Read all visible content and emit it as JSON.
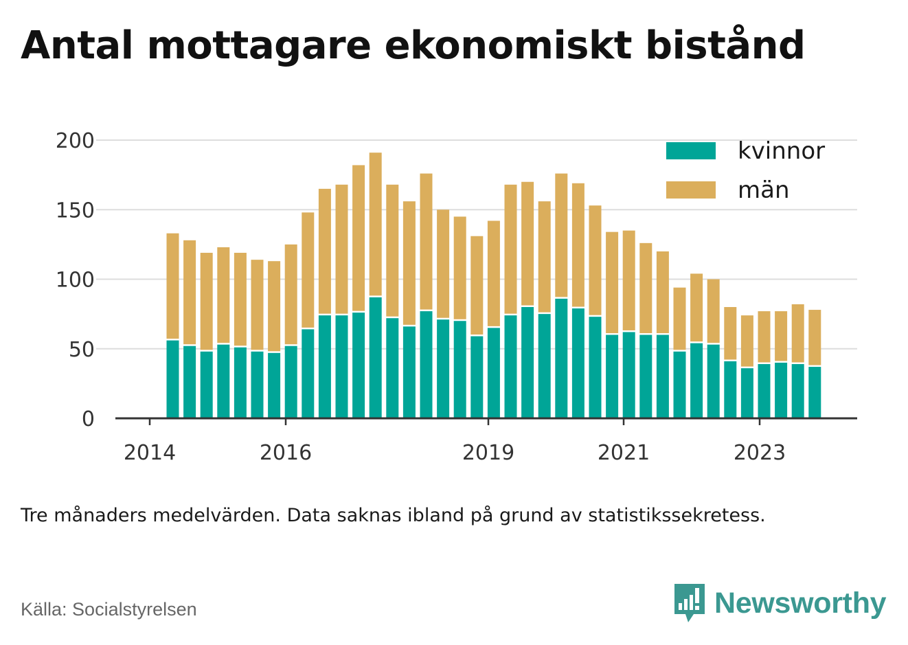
{
  "title": "Antal mottagare ekonomiskt bistånd",
  "note": "Tre månaders medelvärden. Data saknas ibland på grund av statistikssekretess.",
  "source": "Källa: Socialstyrelsen",
  "brand": {
    "name": "Newsworthy",
    "icon": "newsworthy-logo-icon"
  },
  "colors": {
    "kvinnor": "#00a597",
    "man": "#dbae5c",
    "grid": "#dddddd",
    "axis": "#333333"
  },
  "chart_data": {
    "type": "bar",
    "stacked": true,
    "ylim": [
      0,
      200
    ],
    "yticks": [
      "0",
      "50",
      "100",
      "150",
      "200"
    ],
    "xticks": [
      "2014",
      "2016",
      "2019",
      "2021",
      "2023"
    ],
    "grid": true,
    "legend_position": "top-right",
    "series": [
      {
        "name": "kvinnor",
        "values": [
          56,
          52,
          48,
          53,
          51,
          48,
          47,
          52,
          64,
          74,
          74,
          76,
          87,
          72,
          66,
          77,
          71,
          70,
          59,
          65,
          74,
          80,
          75,
          86,
          79,
          73,
          60,
          62,
          60,
          60,
          48,
          54,
          53,
          41,
          36,
          39,
          40,
          39,
          37
        ]
      },
      {
        "name": "män",
        "values": [
          77,
          76,
          71,
          70,
          68,
          66,
          66,
          73,
          84,
          91,
          94,
          106,
          104,
          96,
          90,
          99,
          79,
          75,
          72,
          77,
          94,
          90,
          81,
          90,
          90,
          80,
          74,
          73,
          66,
          60,
          46,
          50,
          47,
          39,
          38,
          38,
          37,
          43,
          41
        ]
      }
    ]
  }
}
